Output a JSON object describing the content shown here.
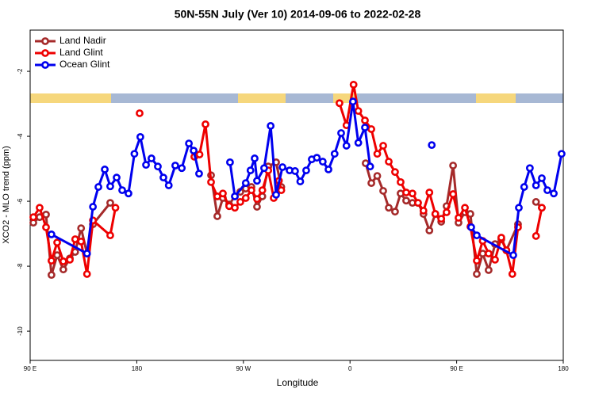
{
  "chart_data": {
    "type": "line",
    "title": "50N-55N July (Ver 10)   2014-09-06 to 2022-02-28",
    "x_label": "Longitude",
    "y_label": "XCO2 - MLO trend (ppm)",
    "xlim": [
      90,
      540
    ],
    "ylim": [
      -10.9,
      -0.73
    ],
    "xticks": [
      {
        "value": 90,
        "label": "90 E"
      },
      {
        "value": 180,
        "label": "180"
      },
      {
        "value": 270,
        "label": "90 W"
      },
      {
        "value": 360,
        "label": "0"
      },
      {
        "value": 450,
        "label": "90 E"
      },
      {
        "value": 540,
        "label": "180"
      }
    ],
    "yticks": [
      -2,
      -4,
      -6,
      -8,
      -10
    ],
    "legend": "top-left",
    "series": [
      {
        "name": "Land Nadir",
        "color": "#a52a2a",
        "x": [
          92.7,
          98,
          103.4,
          108,
          112.8,
          118,
          123.5,
          128,
          133,
          138,
          143,
          157.6,
          null,
          242.7,
          248,
          252.7,
          258,
          262.8,
          267.4,
          272,
          276.8,
          281.5,
          286,
          291,
          297.6,
          302,
          null,
          373.2,
          378,
          383,
          388,
          392.7,
          398,
          402.7,
          407.4,
          412.7,
          417.4,
          422,
          427,
          432,
          437,
          441.5,
          447,
          451.6,
          457,
          461.6,
          467,
          472,
          477,
          482.4,
          487.7,
          492,
          501.8,
          null,
          517,
          521.9
        ],
        "values": [
          -6.66,
          -6.49,
          -6.41,
          -8.27,
          -7.66,
          -8.1,
          -7.76,
          -7.56,
          -6.83,
          -7.61,
          -6.71,
          -6.05,
          null,
          -5.2,
          -6.46,
          -5.9,
          -6.1,
          -5.85,
          -5.71,
          -5.61,
          -5.56,
          -6.17,
          -5.85,
          -4.93,
          -4.8,
          -5.56,
          null,
          -4.83,
          -5.44,
          -5.22,
          -5.68,
          -6.2,
          -6.32,
          -5.76,
          -5.98,
          -6.05,
          -6.05,
          -6.39,
          -6.9,
          -6.39,
          -6.63,
          -6.15,
          -4.9,
          -6.66,
          -6.34,
          -6.39,
          -8.24,
          -7.61,
          -8.12,
          -7.32,
          -7.17,
          -7.51,
          -6.71,
          null,
          -6.02,
          -6.2
        ]
      },
      {
        "name": "Land Glint",
        "color": "#ee0000",
        "x": [
          92.7,
          98,
          103.4,
          108,
          112.8,
          118,
          123.5,
          128,
          133,
          138,
          143,
          157.6,
          162,
          null,
          182.4,
          null,
          228.6,
          233,
          238,
          242.7,
          248,
          252.7,
          258,
          262.8,
          267.4,
          272,
          276.8,
          281.5,
          286,
          291,
          295.6,
          300,
          302,
          null,
          351.1,
          357,
          363,
          367,
          372.6,
          378,
          383,
          388,
          392.7,
          398,
          402.7,
          407.4,
          412.7,
          417.4,
          422,
          427,
          432,
          437,
          441.5,
          447,
          451.6,
          457,
          461.6,
          467,
          472,
          477,
          482.4,
          487.7,
          492,
          497,
          501.8,
          null,
          517,
          521.9
        ],
        "values": [
          -6.49,
          -6.2,
          -6.8,
          -7.83,
          -7.27,
          -7.85,
          -7.8,
          -7.17,
          -7.24,
          -8.24,
          -6.59,
          -7.05,
          -6.2,
          null,
          -3.29,
          null,
          -4.63,
          -4.56,
          -3.63,
          -5.41,
          -5.85,
          -5.76,
          -6.15,
          -6.2,
          -6.02,
          -5.9,
          -5.66,
          -5.93,
          -5.66,
          -5.05,
          -5.9,
          -5.37,
          -5.66,
          null,
          -2.98,
          -3.66,
          -2.41,
          -3.22,
          -3.51,
          -3.78,
          -4.54,
          -4.29,
          -4.78,
          -5.1,
          -5.41,
          -5.73,
          -5.76,
          -6.05,
          -6.29,
          -5.73,
          -6.39,
          -6.54,
          -6.34,
          -5.78,
          -6.51,
          -6.2,
          -6.78,
          -7.83,
          -7.22,
          -7.61,
          -7.8,
          -7.12,
          -7.51,
          -8.24,
          -6.8,
          null,
          -7.07,
          -6.2
        ]
      },
      {
        "name": "Ocean Glint",
        "color": "#0000ee",
        "x": [
          108,
          138,
          143,
          147.6,
          153,
          157.6,
          163,
          167.7,
          173,
          178,
          183,
          187.8,
          192.4,
          197.8,
          202.5,
          207,
          212.5,
          218,
          224,
          228,
          232.6,
          null,
          258.7,
          262.8,
          272,
          276,
          279.5,
          281.5,
          287.5,
          293,
          297.6,
          303,
          309,
          313.6,
          318,
          323,
          327.7,
          332,
          337,
          341.8,
          347,
          352.5,
          357,
          362.5,
          367,
          372.6,
          377,
          null,
          429,
          null,
          462.3,
          467,
          497.8,
          502.5,
          507,
          511.8,
          517,
          521.9,
          526.6,
          532,
          538.6
        ],
        "values": [
          -7.02,
          -7.61,
          -6.17,
          -5.56,
          -5.02,
          -5.54,
          -5.27,
          -5.66,
          -5.76,
          -4.54,
          -4.02,
          -4.88,
          -4.68,
          -4.93,
          -5.27,
          -5.51,
          -4.9,
          -4.98,
          -4.22,
          -4.44,
          -5.15,
          null,
          -4.8,
          -5.85,
          -5.44,
          -5.05,
          -4.68,
          -5.37,
          -4.98,
          -3.68,
          -5.8,
          -4.95,
          -5.05,
          -5.07,
          -5.39,
          -5.05,
          -4.71,
          -4.66,
          -4.78,
          -5.02,
          -4.54,
          -3.9,
          -4.29,
          -2.93,
          -4.2,
          -3.73,
          -4.93,
          null,
          -4.27,
          null,
          -6.8,
          -7.05,
          -7.66,
          -6.2,
          -5.56,
          -4.98,
          -5.51,
          -5.29,
          -5.66,
          -5.76,
          -4.54
        ]
      }
    ]
  }
}
